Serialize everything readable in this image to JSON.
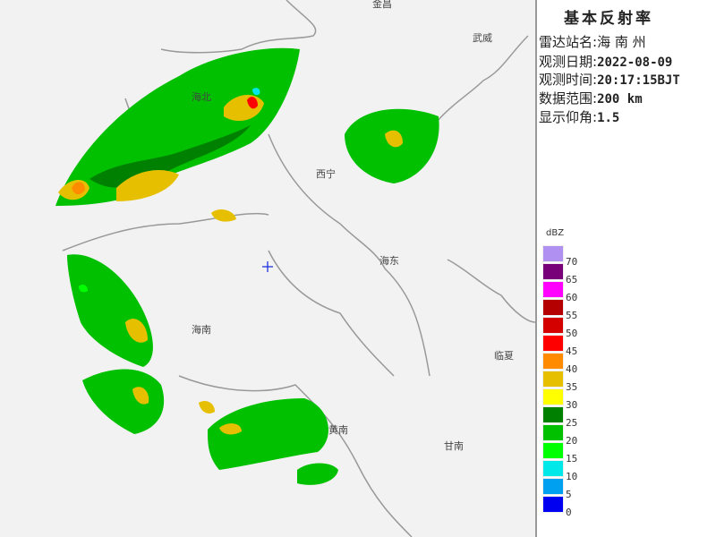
{
  "panel": {
    "title": "基本反射率",
    "rows": [
      {
        "label": "雷达站名:",
        "value": "海 南 州"
      },
      {
        "label": "观测日期:",
        "value": "2022-08-09"
      },
      {
        "label": "观测时间:",
        "value": "20:17:15BJT"
      },
      {
        "label": "数据范围:",
        "value": "200 km"
      },
      {
        "label": "显示仰角:",
        "value": "1.5"
      }
    ]
  },
  "legend": {
    "unit": "dBZ",
    "items": [
      {
        "label": "70",
        "color": "#b090f0"
      },
      {
        "label": "65",
        "color": "#780078"
      },
      {
        "label": "60",
        "color": "#ff00ff"
      },
      {
        "label": "55",
        "color": "#b40000"
      },
      {
        "label": "50",
        "color": "#d40000"
      },
      {
        "label": "45",
        "color": "#ff0000"
      },
      {
        "label": "40",
        "color": "#ff8c00"
      },
      {
        "label": "35",
        "color": "#e6c000"
      },
      {
        "label": "30",
        "color": "#ffff00"
      },
      {
        "label": "25",
        "color": "#008000"
      },
      {
        "label": "20",
        "color": "#00c000"
      },
      {
        "label": "15",
        "color": "#00ff00"
      },
      {
        "label": "10",
        "color": "#00e8e8"
      },
      {
        "label": "5",
        "color": "#00a0f0"
      },
      {
        "label": "0",
        "color": "#0000f0"
      }
    ]
  },
  "map": {
    "cities": [
      "金昌",
      "武威",
      "海北",
      "西宁",
      "海东",
      "海南",
      "临夏",
      "黄南",
      "甘南"
    ]
  }
}
